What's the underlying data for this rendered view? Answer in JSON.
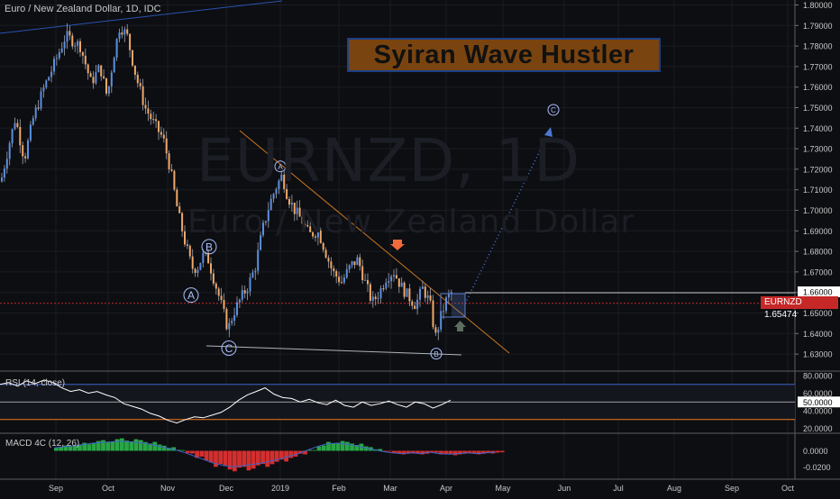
{
  "header": {
    "symbol_line": "Euro / New Zealand Dollar, 1D, IDC"
  },
  "annotation": {
    "title": "Syiran Wave Hustler"
  },
  "watermark": {
    "line1": "EURNZD, 1D",
    "line2": "Euro / New Zealand Dollar"
  },
  "price_tag": {
    "symbol": "EURNZD",
    "value": "1.65474"
  },
  "current_box_price": "1.66000",
  "colors": {
    "background": "#0d0e12",
    "up": "#5b8fe0",
    "down": "#f0a868",
    "wick": "#a0a4b0",
    "grid": "#1a1c22",
    "trendline": "#c8761e",
    "projection": "#4a78d0",
    "rsi_line": "#ffffff",
    "rsi_upper": "#3f63c9",
    "rsi_lower": "#f07b1a",
    "macd_pos": "#28a745",
    "macd_neg": "#d32f2f"
  },
  "chart_data": [
    {
      "type": "candlestick",
      "title": "Euro / New Zealand Dollar, 1D, IDC",
      "x_ticks": [
        "Sep",
        "Oct",
        "Nov",
        "Dec",
        "2019",
        "Feb",
        "Mar",
        "Apr",
        "May",
        "Jun",
        "Jul",
        "Aug",
        "Sep",
        "Oct"
      ],
      "y_ticks": [
        "1.80000",
        "1.79000",
        "1.78000",
        "1.77000",
        "1.76000",
        "1.75000",
        "1.74000",
        "1.73000",
        "1.72000",
        "1.71000",
        "1.70000",
        "1.69000",
        "1.68000",
        "1.67000",
        "1.66000",
        "1.65000",
        "1.64000",
        "1.63000"
      ],
      "ylim": [
        1.625,
        1.8
      ],
      "close_path": [
        [
          0,
          1.714
        ],
        [
          8,
          1.73
        ],
        [
          16,
          1.745
        ],
        [
          26,
          1.725
        ],
        [
          36,
          1.745
        ],
        [
          48,
          1.76
        ],
        [
          58,
          1.77
        ],
        [
          72,
          1.785
        ],
        [
          88,
          1.78
        ],
        [
          100,
          1.762
        ],
        [
          110,
          1.77
        ],
        [
          118,
          1.755
        ],
        [
          125,
          1.775
        ],
        [
          132,
          1.79
        ],
        [
          140,
          1.785
        ],
        [
          150,
          1.765
        ],
        [
          160,
          1.75
        ],
        [
          170,
          1.742
        ],
        [
          180,
          1.735
        ],
        [
          188,
          1.72
        ],
        [
          196,
          1.7
        ],
        [
          204,
          1.685
        ],
        [
          212,
          1.672
        ],
        [
          218,
          1.672
        ],
        [
          224,
          1.678
        ],
        [
          230,
          1.676
        ],
        [
          236,
          1.667
        ],
        [
          244,
          1.655
        ],
        [
          252,
          1.642
        ],
        [
          258,
          1.65
        ],
        [
          266,
          1.657
        ],
        [
          274,
          1.663
        ],
        [
          282,
          1.672
        ],
        [
          290,
          1.69
        ],
        [
          298,
          1.703
        ],
        [
          306,
          1.712
        ],
        [
          312,
          1.717
        ],
        [
          318,
          1.707
        ],
        [
          326,
          1.7
        ],
        [
          334,
          1.695
        ],
        [
          342,
          1.688
        ],
        [
          352,
          1.69
        ],
        [
          360,
          1.68
        ],
        [
          368,
          1.67
        ],
        [
          378,
          1.665
        ],
        [
          388,
          1.673
        ],
        [
          396,
          1.676
        ],
        [
          404,
          1.665
        ],
        [
          412,
          1.655
        ],
        [
          420,
          1.66
        ],
        [
          428,
          1.668
        ],
        [
          436,
          1.67
        ],
        [
          444,
          1.663
        ],
        [
          452,
          1.658
        ],
        [
          460,
          1.654
        ],
        [
          468,
          1.662
        ],
        [
          476,
          1.655
        ],
        [
          482,
          1.638
        ],
        [
          488,
          1.648
        ],
        [
          494,
          1.656
        ],
        [
          500,
          1.66
        ]
      ],
      "wave_labels": [
        {
          "label": "A",
          "x": 212,
          "price": 1.6587
        },
        {
          "label": "B",
          "x": 232,
          "price": 1.6823
        },
        {
          "label": "C",
          "x": 254,
          "price": 1.6329
        },
        {
          "label": "A",
          "x": 311,
          "price": 1.7214
        },
        {
          "label": "B",
          "x": 484,
          "price": 1.6302
        },
        {
          "label": "C",
          "x": 614,
          "price": 1.7489
        }
      ],
      "last_price": 1.65474
    },
    {
      "type": "line",
      "title": "RSI (14, close)",
      "y_ticks": [
        "80.0000",
        "60.0000",
        "50.0000",
        "40.0000",
        "20.0000"
      ],
      "levels": {
        "upper": 70,
        "lower": 30,
        "last": 50.0
      },
      "values": [
        70,
        72,
        68,
        74,
        71,
        75,
        72,
        66,
        62,
        64,
        60,
        62,
        58,
        55,
        48,
        45,
        42,
        37,
        34,
        29,
        26,
        30,
        33,
        32,
        35,
        38,
        44,
        52,
        58,
        62,
        66,
        59,
        55,
        54,
        50,
        53,
        49,
        47,
        52,
        46,
        44,
        50,
        46,
        48,
        51,
        47,
        44,
        50,
        48,
        43,
        47,
        52
      ]
    },
    {
      "type": "histogram",
      "title": "MACD 4C (12, 26)",
      "y_ticks": [
        "0.0000",
        "-0.0200"
      ],
      "values": [
        0.004,
        0.006,
        0.007,
        0.009,
        0.011,
        0.012,
        0.013,
        0.014,
        0.013,
        0.012,
        0.01,
        0.007,
        0.004,
        0.001,
        -0.003,
        -0.008,
        -0.013,
        -0.018,
        -0.021,
        -0.023,
        -0.022,
        -0.02,
        -0.018,
        -0.015,
        -0.012,
        -0.008,
        -0.004,
        0.001,
        0.006,
        0.01,
        0.011,
        0.01,
        0.008,
        0.005,
        0.002,
        -0.001,
        -0.003,
        -0.004,
        -0.003,
        -0.004,
        -0.002,
        -0.004,
        -0.005,
        -0.004,
        -0.003,
        -0.004,
        -0.003,
        -0.002
      ]
    }
  ]
}
